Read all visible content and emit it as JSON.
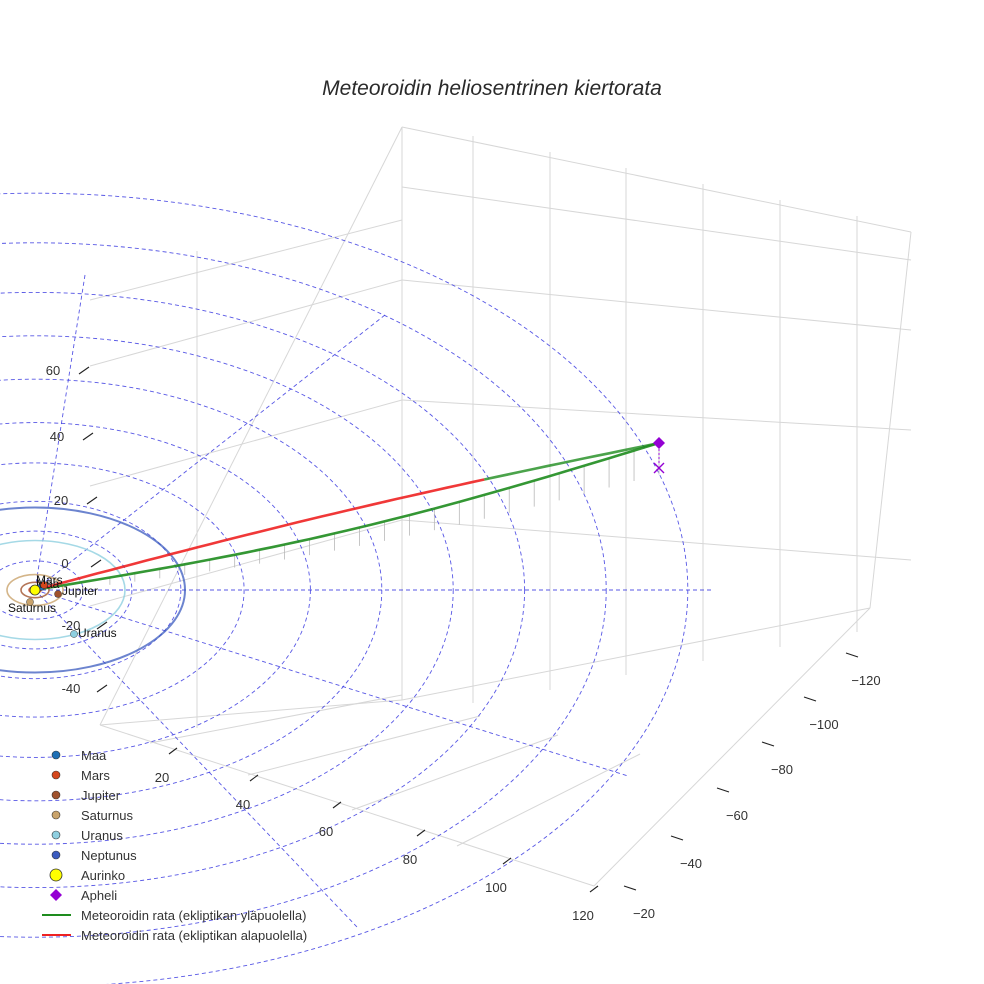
{
  "chart_data": {
    "type": "scatter",
    "title": "Meteoroidin heliosentrinen kiertorata",
    "axes": {
      "x": {
        "ticks": [
          20,
          40,
          60,
          80,
          100,
          120
        ]
      },
      "y": {
        "ticks": [
          -120,
          -100,
          -80,
          -60,
          -40,
          -20
        ]
      },
      "z": {
        "ticks": [
          60,
          40,
          20,
          0,
          -20,
          -40
        ]
      }
    },
    "planets": [
      {
        "name": "Maa",
        "color": "#1f6fb5"
      },
      {
        "name": "Mars",
        "color": "#d4461c"
      },
      {
        "name": "Jupiter",
        "color": "#a0522d"
      },
      {
        "name": "Saturnus",
        "color": "#c9a36b"
      },
      {
        "name": "Uranus",
        "color": "#8ecfe0"
      },
      {
        "name": "Neptunus",
        "color": "#3b5bbf"
      }
    ],
    "sun": {
      "name": "Aurinko",
      "color": "#ffff00"
    },
    "aphelion": {
      "name": "Apheli",
      "color": "#9400d3"
    },
    "series": [
      {
        "name": "Meteoroidin rata (ekliptikan yläpuolella)",
        "color": "#1e8c1e"
      },
      {
        "name": "Meteoroidin rata (ekliptikan alapuolella)",
        "color": "#ee2222"
      }
    ],
    "legend_position": "bottom-left"
  }
}
